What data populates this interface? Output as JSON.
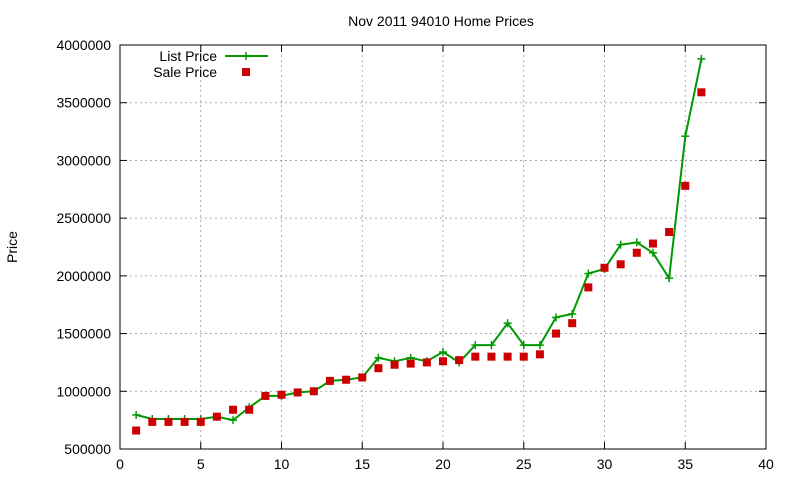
{
  "chart_data": {
    "type": "line",
    "title": "Nov 2011 94010 Home Prices",
    "xlabel": "",
    "ylabel": "Price",
    "xlim": [
      0,
      40
    ],
    "ylim": [
      500000,
      4000000
    ],
    "x_ticks": [
      "0",
      "5",
      "10",
      "15",
      "20",
      "25",
      "30",
      "35",
      "40"
    ],
    "y_ticks": [
      "500000",
      "1000000",
      "1500000",
      "2000000",
      "2500000",
      "3000000",
      "3500000",
      "4000000"
    ],
    "grid": true,
    "legend_position": "top-left",
    "series": [
      {
        "name": "List Price",
        "style": "line-with-plus-markers",
        "color": "#009900",
        "x": [
          1,
          2,
          3,
          4,
          5,
          6,
          7,
          8,
          9,
          10,
          11,
          12,
          13,
          14,
          15,
          16,
          17,
          18,
          19,
          20,
          21,
          22,
          23,
          24,
          25,
          26,
          27,
          28,
          29,
          30,
          31,
          32,
          33,
          34,
          35,
          36
        ],
        "values": [
          795000,
          760000,
          760000,
          760000,
          760000,
          780000,
          750000,
          860000,
          960000,
          960000,
          990000,
          1000000,
          1090000,
          1100000,
          1120000,
          1290000,
          1260000,
          1290000,
          1260000,
          1340000,
          1250000,
          1400000,
          1400000,
          1590000,
          1400000,
          1400000,
          1640000,
          1670000,
          2020000,
          2060000,
          2270000,
          2290000,
          2200000,
          1980000,
          3210000,
          3880000
        ]
      },
      {
        "name": "Sale Price",
        "style": "square-markers",
        "color": "#cc0000",
        "x": [
          1,
          2,
          3,
          4,
          5,
          6,
          7,
          8,
          9,
          10,
          11,
          12,
          13,
          14,
          15,
          16,
          17,
          18,
          19,
          20,
          21,
          22,
          23,
          24,
          25,
          26,
          27,
          28,
          29,
          30,
          31,
          32,
          33,
          34,
          35,
          36
        ],
        "values": [
          660000,
          735000,
          735000,
          735000,
          735000,
          780000,
          840000,
          840000,
          960000,
          970000,
          990000,
          1000000,
          1090000,
          1100000,
          1120000,
          1200000,
          1230000,
          1240000,
          1250000,
          1260000,
          1270000,
          1300000,
          1300000,
          1300000,
          1300000,
          1320000,
          1500000,
          1590000,
          1900000,
          2070000,
          2100000,
          2200000,
          2280000,
          2380000,
          2780000,
          3590000
        ]
      }
    ]
  }
}
